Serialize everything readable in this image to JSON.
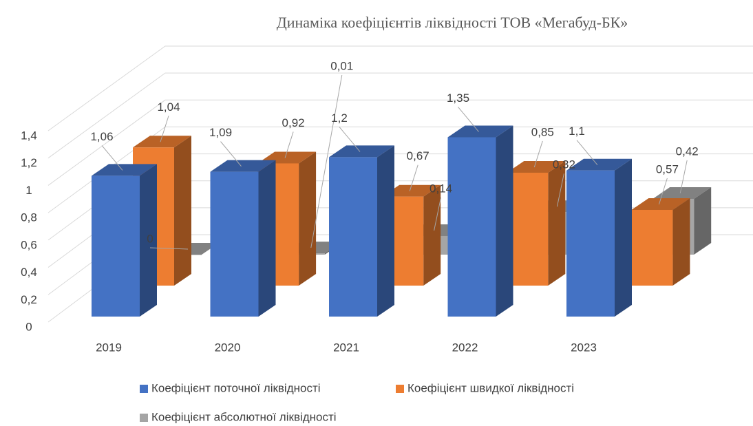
{
  "chart_data": {
    "type": "bar3d",
    "title": "Динаміка коефіцієнтів ліквідності ТОВ «Мегабуд-БК»",
    "categories": [
      "2019",
      "2020",
      "2021",
      "2022",
      "2023"
    ],
    "series": [
      {
        "name": "Коефіцієнт поточної ліквідності",
        "color": "#4472c4",
        "values": [
          1.06,
          1.09,
          1.2,
          1.35,
          1.1
        ],
        "value_labels": [
          "1,06",
          "1,09",
          "1,2",
          "1,35",
          "1,1"
        ]
      },
      {
        "name": "Коефіцієнт швидкої ліквідності",
        "color": "#ed7d31",
        "values": [
          1.04,
          0.92,
          0.67,
          0.85,
          0.57
        ],
        "value_labels": [
          "1,04",
          "0,92",
          "0,67",
          "0,85",
          "0,57"
        ]
      },
      {
        "name": "Коефіцієнт абсолютної ліквідності",
        "color": "#a5a5a5",
        "values": [
          0,
          0.01,
          0.14,
          0.32,
          0.42
        ],
        "value_labels": [
          "0",
          "0,01",
          "0,14",
          "0,32",
          "0,42"
        ]
      }
    ],
    "ylim": [
      0,
      1.4
    ],
    "yticks": [
      0,
      {
        "value": 0.2,
        "label": "0,2"
      },
      {
        "value": 0.4,
        "label": "0,4"
      },
      {
        "value": 0.6,
        "label": "0,6"
      },
      {
        "value": 0.8,
        "label": "0,8"
      },
      1,
      {
        "value": 1.2,
        "label": "1,2"
      },
      {
        "value": 1.4,
        "label": "1,4"
      }
    ],
    "grid": true,
    "legend": "bottom"
  }
}
